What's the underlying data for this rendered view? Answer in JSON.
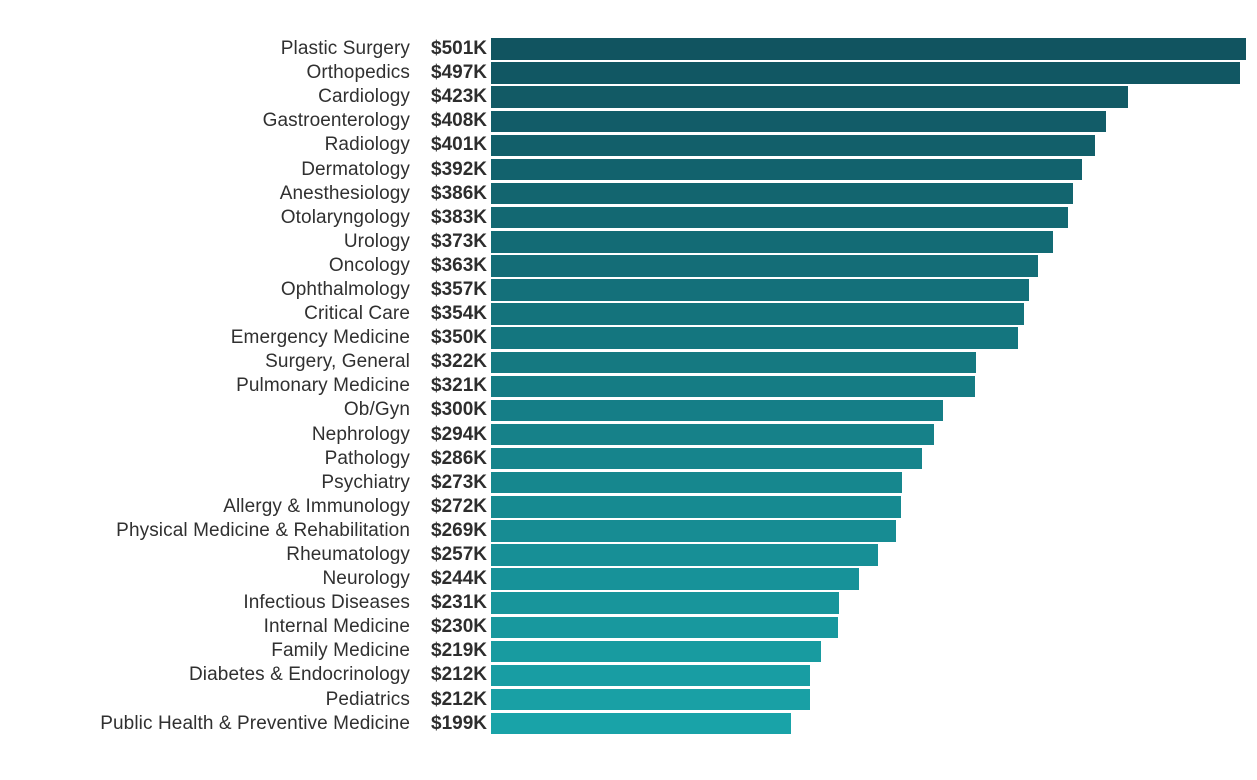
{
  "chart_data": {
    "type": "bar",
    "orientation": "horizontal",
    "title": "",
    "xlabel": "",
    "ylabel": "",
    "grid": false,
    "legend": false,
    "xlim": [
      0,
      501
    ],
    "bar_color_top": "#115460",
    "bar_color_bottom": "#19a3a8",
    "label_color": "#303030",
    "categories": [
      "Plastic Surgery",
      "Orthopedics",
      "Cardiology",
      "Gastroenterology",
      "Radiology",
      "Dermatology",
      "Anesthesiology",
      "Otolaryngology",
      "Urology",
      "Oncology",
      "Ophthalmology",
      "Critical Care",
      "Emergency Medicine",
      "Surgery, General",
      "Pulmonary Medicine",
      "Ob/Gyn",
      "Nephrology",
      "Pathology",
      "Psychiatry",
      "Allergy & Immunology",
      "Physical Medicine & Rehabilitation",
      "Rheumatology",
      "Neurology",
      "Infectious Diseases",
      "Internal Medicine",
      "Family Medicine",
      "Diabetes & Endocrinology",
      "Pediatrics",
      "Public Health & Preventive Medicine"
    ],
    "values": [
      501,
      497,
      423,
      408,
      401,
      392,
      386,
      383,
      373,
      363,
      357,
      354,
      350,
      322,
      321,
      300,
      294,
      286,
      273,
      272,
      269,
      257,
      244,
      231,
      230,
      219,
      212,
      212,
      199
    ],
    "value_labels": [
      "$501K",
      "$497K",
      "$423K",
      "$408K",
      "$401K",
      "$392K",
      "$386K",
      "$383K",
      "$373K",
      "$363K",
      "$357K",
      "$354K",
      "$350K",
      "$322K",
      "$321K",
      "$300K",
      "$294K",
      "$286K",
      "$273K",
      "$272K",
      "$269K",
      "$257K",
      "$244K",
      "$231K",
      "$230K",
      "$219K",
      "$212K",
      "$212K",
      "$199K"
    ]
  }
}
